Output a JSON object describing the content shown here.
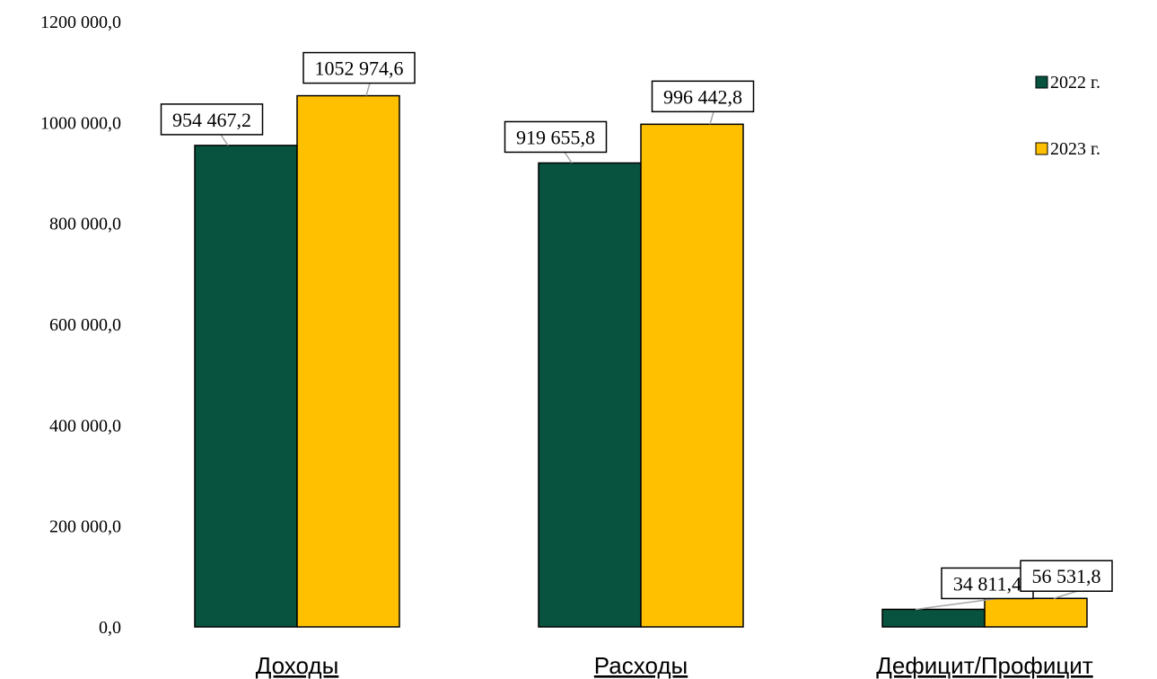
{
  "chart_data": {
    "type": "bar",
    "categories": [
      "Доходы",
      "Расходы",
      "Дефицит/Профицит"
    ],
    "series": [
      {
        "name": "2022 г.",
        "color": "#07533F",
        "values": [
          954467.2,
          919655.8,
          34811.4
        ],
        "labels": [
          "954 467,2",
          "919 655,8",
          "34 811,4"
        ]
      },
      {
        "name": "2023 г.",
        "color": "#FFC000",
        "values": [
          1052974.6,
          996442.8,
          56531.8
        ],
        "labels": [
          "1052 974,6",
          "996 442,8",
          "56 531,8"
        ]
      }
    ],
    "yticks": [
      0,
      200000,
      400000,
      600000,
      800000,
      1000000,
      1200000
    ],
    "ytick_labels": [
      "0,0",
      "200 000,0",
      "400 000,0",
      "600 000,0",
      "800 000,0",
      "1000 000,0",
      "1200 000,0"
    ],
    "ylim": [
      0,
      1200000
    ],
    "grid": false,
    "legend_position": "top-right"
  }
}
